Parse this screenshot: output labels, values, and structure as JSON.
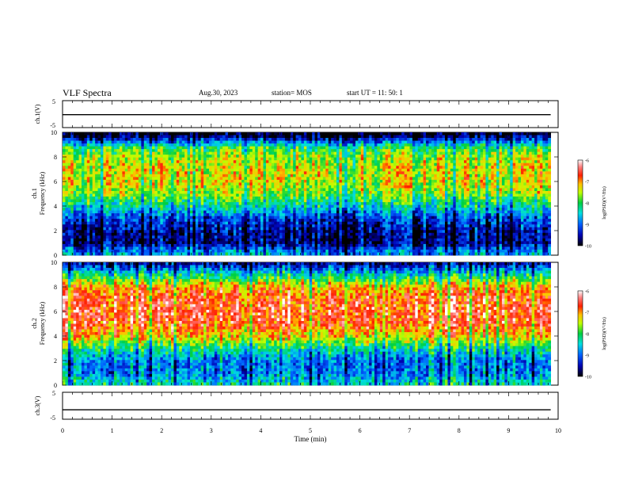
{
  "header": {
    "title": "VLF Spectra",
    "date": "Aug.30, 2023",
    "station": "station= MOS",
    "start": "start  UT =   11: 50: 1"
  },
  "chart_data": [
    {
      "type": "line",
      "panel": "ch1-waveform",
      "ylabel": "ch.1(V)",
      "y_ticks": [
        "5",
        "-5"
      ],
      "ylim": [
        -5,
        5
      ],
      "xlim": [
        0,
        10
      ],
      "series": [
        {
          "x": [
            0,
            9.85
          ],
          "values": [
            -0.2,
            -0.2
          ]
        }
      ]
    },
    {
      "type": "heatmap",
      "panel": "ch1-spectrogram",
      "ylabel_top": "ch.1",
      "ylabel": "Frequency (kHz)",
      "y_ticks": [
        "0",
        "2",
        "4",
        "6",
        "8",
        "10"
      ],
      "ylim": [
        0,
        10
      ],
      "xlim": [
        0,
        9.85
      ],
      "colorbar": {
        "label": "log(PSD)(V²/Hz)",
        "ticks": [
          "-6",
          "-7",
          "-8",
          "-9",
          "-10"
        ],
        "range": [
          -10,
          -6
        ]
      },
      "band_profile": [
        {
          "f": 0,
          "v": -8.6
        },
        {
          "f": 0.5,
          "v": -9.0
        },
        {
          "f": 1.0,
          "v": -9.6
        },
        {
          "f": 2.0,
          "v": -9.5
        },
        {
          "f": 3.0,
          "v": -9.1
        },
        {
          "f": 4.0,
          "v": -8.3
        },
        {
          "f": 5.0,
          "v": -7.6
        },
        {
          "f": 6.0,
          "v": -7.3
        },
        {
          "f": 7.0,
          "v": -7.3
        },
        {
          "f": 8.0,
          "v": -7.5
        },
        {
          "f": 8.7,
          "v": -7.9
        },
        {
          "f": 9.2,
          "v": -8.8
        },
        {
          "f": 9.6,
          "v": -9.6
        },
        {
          "f": 10,
          "v": -10.0
        }
      ]
    },
    {
      "type": "heatmap",
      "panel": "ch2-spectrogram",
      "ylabel_top": "ch.2",
      "ylabel": "Frequency (kHz)",
      "y_ticks": [
        "0",
        "2",
        "4",
        "6",
        "8",
        "10"
      ],
      "ylim": [
        0,
        10
      ],
      "xlim": [
        0,
        9.85
      ],
      "colorbar": {
        "label": "log(PSD)(V²/Hz)",
        "ticks": [
          "-6",
          "-7",
          "-8",
          "-9",
          "-10"
        ],
        "range": [
          -10,
          -6
        ]
      },
      "band_profile": [
        {
          "f": 0,
          "v": -8.2
        },
        {
          "f": 1.0,
          "v": -8.8
        },
        {
          "f": 2.0,
          "v": -8.8
        },
        {
          "f": 3.0,
          "v": -8.1
        },
        {
          "f": 4.0,
          "v": -7.1
        },
        {
          "f": 5.0,
          "v": -6.6
        },
        {
          "f": 6.0,
          "v": -6.5
        },
        {
          "f": 7.0,
          "v": -6.6
        },
        {
          "f": 8.0,
          "v": -7.0
        },
        {
          "f": 8.7,
          "v": -7.8
        },
        {
          "f": 9.3,
          "v": -8.6
        },
        {
          "f": 10,
          "v": -9.6
        }
      ]
    },
    {
      "type": "line",
      "panel": "ch3-waveform",
      "ylabel": "ch.3(V)",
      "y_ticks": [
        "5",
        "-5"
      ],
      "ylim": [
        -5,
        5
      ],
      "xlim": [
        0,
        10
      ],
      "series": [
        {
          "x": [
            0,
            9.85
          ],
          "values": [
            -1.5,
            -1.5
          ]
        }
      ]
    }
  ],
  "x_axis": {
    "label": "Time  (min)",
    "ticks": [
      "0",
      "1",
      "2",
      "3",
      "4",
      "5",
      "6",
      "7",
      "8",
      "9",
      "10"
    ],
    "range": [
      0,
      10
    ]
  }
}
